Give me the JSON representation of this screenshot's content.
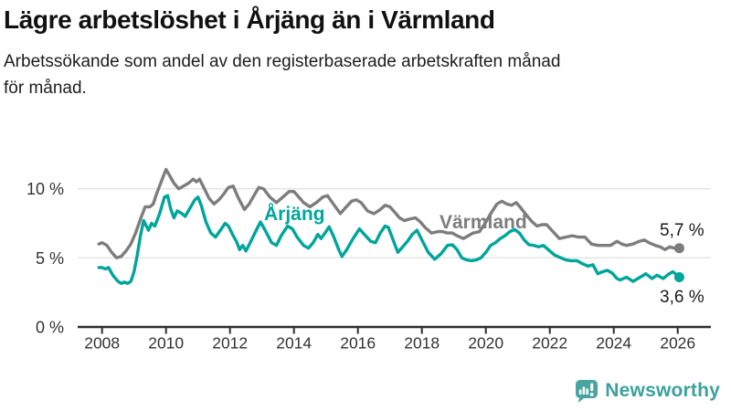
{
  "header": {
    "subtitle_lines": [
      "Arbetssökande som andel av den registerbaserade arbetskraften månad",
      "för månad."
    ]
  },
  "footer": {
    "brand": "Newsworthy",
    "brand_color": "#3ba19c",
    "icon_color": "#4aa5a1"
  },
  "chart_data": {
    "type": "line",
    "title": "Lägre arbetslöshet i Årjäng än i Värmland",
    "subtitle": "Arbetssökande som andel av den registerbaserade arbetskraften månad för månad.",
    "xlabel": "",
    "ylabel": "",
    "x_unit": "year, monthly observations",
    "xlim": [
      2007.9,
      2026.2
    ],
    "ylim": [
      0,
      12
    ],
    "x_ticks": [
      2008,
      2010,
      2012,
      2014,
      2016,
      2018,
      2020,
      2022,
      2024,
      2026
    ],
    "y_ticks": [
      {
        "value": 0,
        "label": "0 %"
      },
      {
        "value": 5,
        "label": "5 %"
      },
      {
        "value": 10,
        "label": "10 %"
      }
    ],
    "grid_values": [
      5,
      10
    ],
    "grid": true,
    "legend_position": "inline-labels",
    "series": [
      {
        "id": "varmland",
        "name": "Värmland",
        "color": "#7d7d7e",
        "end_label": "5,7 %",
        "end_value": 5.7,
        "points": [
          [
            2007.9,
            6.0
          ],
          [
            2008.0,
            6.1
          ],
          [
            2008.15,
            5.9
          ],
          [
            2008.3,
            5.4
          ],
          [
            2008.45,
            5.0
          ],
          [
            2008.6,
            5.1
          ],
          [
            2008.75,
            5.5
          ],
          [
            2008.9,
            6.0
          ],
          [
            2009.05,
            6.8
          ],
          [
            2009.2,
            7.8
          ],
          [
            2009.35,
            8.7
          ],
          [
            2009.5,
            8.7
          ],
          [
            2009.6,
            8.9
          ],
          [
            2009.7,
            9.6
          ],
          [
            2009.85,
            10.5
          ],
          [
            2010.0,
            11.4
          ],
          [
            2010.1,
            11.0
          ],
          [
            2010.25,
            10.4
          ],
          [
            2010.4,
            10.0
          ],
          [
            2010.55,
            10.2
          ],
          [
            2010.7,
            10.4
          ],
          [
            2010.85,
            10.7
          ],
          [
            2010.95,
            10.5
          ],
          [
            2011.05,
            10.7
          ],
          [
            2011.2,
            10.0
          ],
          [
            2011.35,
            9.3
          ],
          [
            2011.5,
            8.9
          ],
          [
            2011.65,
            9.2
          ],
          [
            2011.8,
            9.6
          ],
          [
            2011.95,
            10.1
          ],
          [
            2012.1,
            10.2
          ],
          [
            2012.25,
            9.4
          ],
          [
            2012.45,
            8.5
          ],
          [
            2012.6,
            8.9
          ],
          [
            2012.75,
            9.5
          ],
          [
            2012.9,
            10.1
          ],
          [
            2013.05,
            10.0
          ],
          [
            2013.25,
            9.4
          ],
          [
            2013.45,
            9.0
          ],
          [
            2013.65,
            9.4
          ],
          [
            2013.85,
            9.8
          ],
          [
            2014.0,
            9.8
          ],
          [
            2014.15,
            9.4
          ],
          [
            2014.3,
            9.0
          ],
          [
            2014.5,
            8.7
          ],
          [
            2014.7,
            9.0
          ],
          [
            2014.9,
            9.4
          ],
          [
            2015.05,
            9.5
          ],
          [
            2015.2,
            9.0
          ],
          [
            2015.45,
            8.2
          ],
          [
            2015.6,
            8.6
          ],
          [
            2015.8,
            9.1
          ],
          [
            2015.95,
            9.2
          ],
          [
            2016.1,
            9.0
          ],
          [
            2016.3,
            8.4
          ],
          [
            2016.5,
            8.2
          ],
          [
            2016.7,
            8.5
          ],
          [
            2016.85,
            8.8
          ],
          [
            2017.0,
            8.7
          ],
          [
            2017.15,
            8.3
          ],
          [
            2017.3,
            7.9
          ],
          [
            2017.45,
            7.7
          ],
          [
            2017.6,
            7.8
          ],
          [
            2017.8,
            7.9
          ],
          [
            2017.95,
            7.6
          ],
          [
            2018.1,
            7.2
          ],
          [
            2018.3,
            6.8
          ],
          [
            2018.5,
            6.9
          ],
          [
            2018.65,
            6.9
          ],
          [
            2018.8,
            6.8
          ],
          [
            2018.95,
            6.8
          ],
          [
            2019.1,
            6.6
          ],
          [
            2019.3,
            6.4
          ],
          [
            2019.45,
            6.6
          ],
          [
            2019.6,
            6.8
          ],
          [
            2019.8,
            6.9
          ],
          [
            2019.95,
            7.4
          ],
          [
            2020.15,
            8.2
          ],
          [
            2020.35,
            8.9
          ],
          [
            2020.5,
            9.1
          ],
          [
            2020.65,
            8.9
          ],
          [
            2020.8,
            8.8
          ],
          [
            2020.95,
            9.0
          ],
          [
            2021.1,
            8.6
          ],
          [
            2021.3,
            8.0
          ],
          [
            2021.45,
            7.6
          ],
          [
            2021.6,
            7.3
          ],
          [
            2021.75,
            7.4
          ],
          [
            2021.9,
            7.4
          ],
          [
            2022.1,
            6.9
          ],
          [
            2022.3,
            6.4
          ],
          [
            2022.5,
            6.5
          ],
          [
            2022.7,
            6.6
          ],
          [
            2022.9,
            6.5
          ],
          [
            2023.1,
            6.5
          ],
          [
            2023.3,
            6.0
          ],
          [
            2023.5,
            5.9
          ],
          [
            2023.7,
            5.9
          ],
          [
            2023.9,
            5.9
          ],
          [
            2024.1,
            6.2
          ],
          [
            2024.25,
            6.0
          ],
          [
            2024.4,
            5.9
          ],
          [
            2024.6,
            6.0
          ],
          [
            2024.8,
            6.2
          ],
          [
            2024.95,
            6.3
          ],
          [
            2025.1,
            6.1
          ],
          [
            2025.3,
            5.9
          ],
          [
            2025.45,
            5.8
          ],
          [
            2025.6,
            5.6
          ],
          [
            2025.75,
            5.8
          ],
          [
            2025.9,
            5.7
          ],
          [
            2026.05,
            5.7
          ]
        ]
      },
      {
        "id": "arjang",
        "name": "Årjäng",
        "color": "#00a59b",
        "end_label": "3,6 %",
        "end_value": 3.6,
        "points": [
          [
            2007.9,
            4.3
          ],
          [
            2008.0,
            4.3
          ],
          [
            2008.1,
            4.2
          ],
          [
            2008.2,
            4.3
          ],
          [
            2008.35,
            3.7
          ],
          [
            2008.5,
            3.3
          ],
          [
            2008.6,
            3.15
          ],
          [
            2008.7,
            3.25
          ],
          [
            2008.8,
            3.15
          ],
          [
            2008.9,
            3.3
          ],
          [
            2009.0,
            4.0
          ],
          [
            2009.1,
            5.2
          ],
          [
            2009.2,
            6.6
          ],
          [
            2009.3,
            7.7
          ],
          [
            2009.45,
            7.0
          ],
          [
            2009.55,
            7.5
          ],
          [
            2009.65,
            7.3
          ],
          [
            2009.8,
            8.2
          ],
          [
            2009.95,
            9.4
          ],
          [
            2010.05,
            9.5
          ],
          [
            2010.15,
            8.5
          ],
          [
            2010.25,
            7.9
          ],
          [
            2010.35,
            8.4
          ],
          [
            2010.5,
            8.2
          ],
          [
            2010.6,
            8.0
          ],
          [
            2010.75,
            8.6
          ],
          [
            2010.9,
            9.2
          ],
          [
            2011.0,
            9.4
          ],
          [
            2011.1,
            8.8
          ],
          [
            2011.25,
            7.6
          ],
          [
            2011.4,
            6.8
          ],
          [
            2011.55,
            6.5
          ],
          [
            2011.7,
            7.0
          ],
          [
            2011.85,
            7.5
          ],
          [
            2011.95,
            7.3
          ],
          [
            2012.1,
            6.6
          ],
          [
            2012.2,
            6.2
          ],
          [
            2012.3,
            5.6
          ],
          [
            2012.4,
            5.9
          ],
          [
            2012.5,
            5.5
          ],
          [
            2012.65,
            6.2
          ],
          [
            2012.8,
            6.9
          ],
          [
            2012.95,
            7.6
          ],
          [
            2013.1,
            7.0
          ],
          [
            2013.3,
            6.1
          ],
          [
            2013.45,
            5.9
          ],
          [
            2013.6,
            6.6
          ],
          [
            2013.8,
            7.3
          ],
          [
            2013.95,
            7.1
          ],
          [
            2014.1,
            6.5
          ],
          [
            2014.3,
            5.9
          ],
          [
            2014.45,
            5.7
          ],
          [
            2014.6,
            6.1
          ],
          [
            2014.75,
            6.7
          ],
          [
            2014.85,
            6.4
          ],
          [
            2015.0,
            6.9
          ],
          [
            2015.1,
            7.25
          ],
          [
            2015.25,
            6.5
          ],
          [
            2015.4,
            5.6
          ],
          [
            2015.5,
            5.1
          ],
          [
            2015.65,
            5.6
          ],
          [
            2015.85,
            6.4
          ],
          [
            2016.05,
            7.1
          ],
          [
            2016.2,
            6.7
          ],
          [
            2016.4,
            6.2
          ],
          [
            2016.55,
            6.1
          ],
          [
            2016.7,
            6.8
          ],
          [
            2016.85,
            7.3
          ],
          [
            2016.95,
            7.2
          ],
          [
            2017.1,
            6.3
          ],
          [
            2017.25,
            5.4
          ],
          [
            2017.4,
            5.8
          ],
          [
            2017.55,
            6.2
          ],
          [
            2017.7,
            6.7
          ],
          [
            2017.85,
            7.0
          ],
          [
            2018.0,
            6.3
          ],
          [
            2018.2,
            5.4
          ],
          [
            2018.4,
            4.9
          ],
          [
            2018.6,
            5.3
          ],
          [
            2018.8,
            5.9
          ],
          [
            2018.95,
            5.95
          ],
          [
            2019.1,
            5.6
          ],
          [
            2019.25,
            5.0
          ],
          [
            2019.4,
            4.85
          ],
          [
            2019.55,
            4.8
          ],
          [
            2019.7,
            4.85
          ],
          [
            2019.85,
            5.0
          ],
          [
            2020.0,
            5.4
          ],
          [
            2020.15,
            5.9
          ],
          [
            2020.3,
            6.1
          ],
          [
            2020.45,
            6.4
          ],
          [
            2020.6,
            6.6
          ],
          [
            2020.75,
            6.9
          ],
          [
            2020.9,
            7.05
          ],
          [
            2021.05,
            6.8
          ],
          [
            2021.2,
            6.3
          ],
          [
            2021.35,
            5.95
          ],
          [
            2021.5,
            5.9
          ],
          [
            2021.65,
            5.8
          ],
          [
            2021.8,
            5.9
          ],
          [
            2021.95,
            5.6
          ],
          [
            2022.15,
            5.2
          ],
          [
            2022.35,
            5.0
          ],
          [
            2022.5,
            4.85
          ],
          [
            2022.65,
            4.8
          ],
          [
            2022.85,
            4.8
          ],
          [
            2023.0,
            4.6
          ],
          [
            2023.2,
            4.4
          ],
          [
            2023.35,
            4.5
          ],
          [
            2023.5,
            3.85
          ],
          [
            2023.65,
            4.0
          ],
          [
            2023.8,
            4.1
          ],
          [
            2023.95,
            3.9
          ],
          [
            2024.1,
            3.5
          ],
          [
            2024.2,
            3.4
          ],
          [
            2024.4,
            3.6
          ],
          [
            2024.6,
            3.3
          ],
          [
            2024.75,
            3.5
          ],
          [
            2024.9,
            3.7
          ],
          [
            2025.0,
            3.85
          ],
          [
            2025.2,
            3.5
          ],
          [
            2025.35,
            3.75
          ],
          [
            2025.55,
            3.5
          ],
          [
            2025.7,
            3.8
          ],
          [
            2025.85,
            4.0
          ],
          [
            2025.95,
            3.8
          ],
          [
            2026.05,
            3.6
          ]
        ]
      }
    ]
  }
}
